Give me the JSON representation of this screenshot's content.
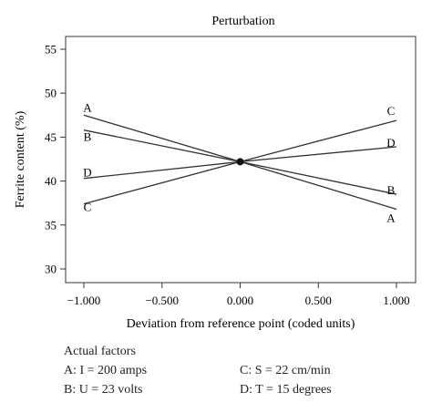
{
  "chart_data": {
    "type": "line",
    "title": "Perturbation",
    "xlabel": "Deviation from reference point (coded units)",
    "ylabel": "Ferrite content (%)",
    "xlim": [
      -1.0,
      1.0
    ],
    "ylim": [
      30,
      55
    ],
    "x_ticks": [
      "−1.000",
      "−0.500",
      "0.000",
      "0.500",
      "1.000"
    ],
    "x_tick_values": [
      -1.0,
      -0.5,
      0.0,
      0.5,
      1.0
    ],
    "y_ticks": [
      "30",
      "35",
      "40",
      "45",
      "50",
      "55"
    ],
    "y_tick_values": [
      30,
      35,
      40,
      45,
      50,
      55
    ],
    "x": [
      -1.0,
      0.0,
      1.0
    ],
    "reference_point": {
      "x": 0.0,
      "y": 42.2
    },
    "series": [
      {
        "name": "A",
        "values": [
          47.5,
          42.2,
          36.8
        ]
      },
      {
        "name": "B",
        "values": [
          45.8,
          42.2,
          38.5
        ]
      },
      {
        "name": "C",
        "values": [
          37.4,
          42.2,
          46.9
        ]
      },
      {
        "name": "D",
        "values": [
          40.3,
          42.2,
          43.9
        ]
      }
    ],
    "grid": false,
    "line_color": "#333333"
  },
  "factors": {
    "heading": "Actual factors",
    "rows": [
      [
        "A: I = 200 amps",
        "C: S = 22 cm/min"
      ],
      [
        "B: U = 23 volts",
        "D: T = 15 degrees"
      ]
    ]
  }
}
